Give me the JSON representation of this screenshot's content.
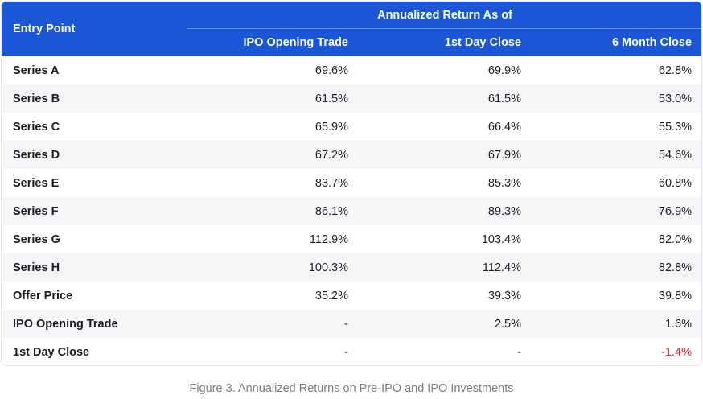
{
  "table": {
    "header": {
      "entry_point": "Entry Point",
      "group_label": "Annualized Return As of",
      "columns": [
        "IPO Opening Trade",
        "1st Day Close",
        "6 Month Close"
      ]
    },
    "rows": [
      {
        "label": "Series A",
        "values": [
          "69.6%",
          "69.9%",
          "62.8%"
        ]
      },
      {
        "label": "Series B",
        "values": [
          "61.5%",
          "61.5%",
          "53.0%"
        ]
      },
      {
        "label": "Series C",
        "values": [
          "65.9%",
          "66.4%",
          "55.3%"
        ]
      },
      {
        "label": "Series D",
        "values": [
          "67.2%",
          "67.9%",
          "54.6%"
        ]
      },
      {
        "label": "Series E",
        "values": [
          "83.7%",
          "85.3%",
          "60.8%"
        ]
      },
      {
        "label": "Series F",
        "values": [
          "86.1%",
          "89.3%",
          "76.9%"
        ]
      },
      {
        "label": "Series G",
        "values": [
          "112.9%",
          "103.4%",
          "82.0%"
        ]
      },
      {
        "label": "Series H",
        "values": [
          "100.3%",
          "112.4%",
          "82.8%"
        ]
      },
      {
        "label": "Offer Price",
        "values": [
          "35.2%",
          "39.3%",
          "39.8%"
        ]
      },
      {
        "label": "IPO Opening Trade",
        "values": [
          "-",
          "2.5%",
          "1.6%"
        ]
      },
      {
        "label": "1st Day Close",
        "values": [
          "-",
          "-",
          "-1.4%"
        ]
      }
    ]
  },
  "caption": "Figure 3. Annualized Returns on Pre-IPO and IPO Investments",
  "colors": {
    "header_bg": "#1a56d6",
    "header_text": "#ffffff",
    "stripe": "#f5f6f8",
    "negative": "#e5262b",
    "caption": "#7a808a"
  }
}
